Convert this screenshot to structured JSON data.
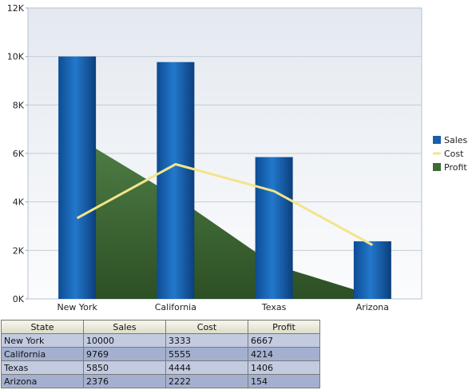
{
  "chart_data": {
    "type": "bar",
    "categories": [
      "New York",
      "California",
      "Texas",
      "Arizona"
    ],
    "series": [
      {
        "name": "Sales",
        "type": "bar",
        "values": [
          10000,
          9769,
          5850,
          2376
        ],
        "color": "#1a5ea8"
      },
      {
        "name": "Cost",
        "type": "line",
        "values": [
          3333,
          5555,
          4444,
          2222
        ],
        "color": "#f3e48a"
      },
      {
        "name": "Profit",
        "type": "area",
        "values": [
          6667,
          4214,
          1406,
          154
        ],
        "color": "#3f6b34"
      }
    ],
    "ylim": [
      0,
      12000
    ],
    "yticks": [
      0,
      2000,
      4000,
      6000,
      8000,
      10000,
      12000
    ],
    "ytick_labels": [
      "0K",
      "2K",
      "4K",
      "6K",
      "8K",
      "10K",
      "12K"
    ],
    "grid": true,
    "legend_position": "right",
    "title": "",
    "xlabel": "",
    "ylabel": ""
  },
  "table": {
    "headers": [
      "State",
      "Sales",
      "Cost",
      "Profit"
    ],
    "rows": [
      [
        "New York",
        "10000",
        "3333",
        "6667"
      ],
      [
        "California",
        "9769",
        "5555",
        "4214"
      ],
      [
        "Texas",
        "5850",
        "4444",
        "1406"
      ],
      [
        "Arizona",
        "2376",
        "2222",
        "154"
      ]
    ]
  }
}
